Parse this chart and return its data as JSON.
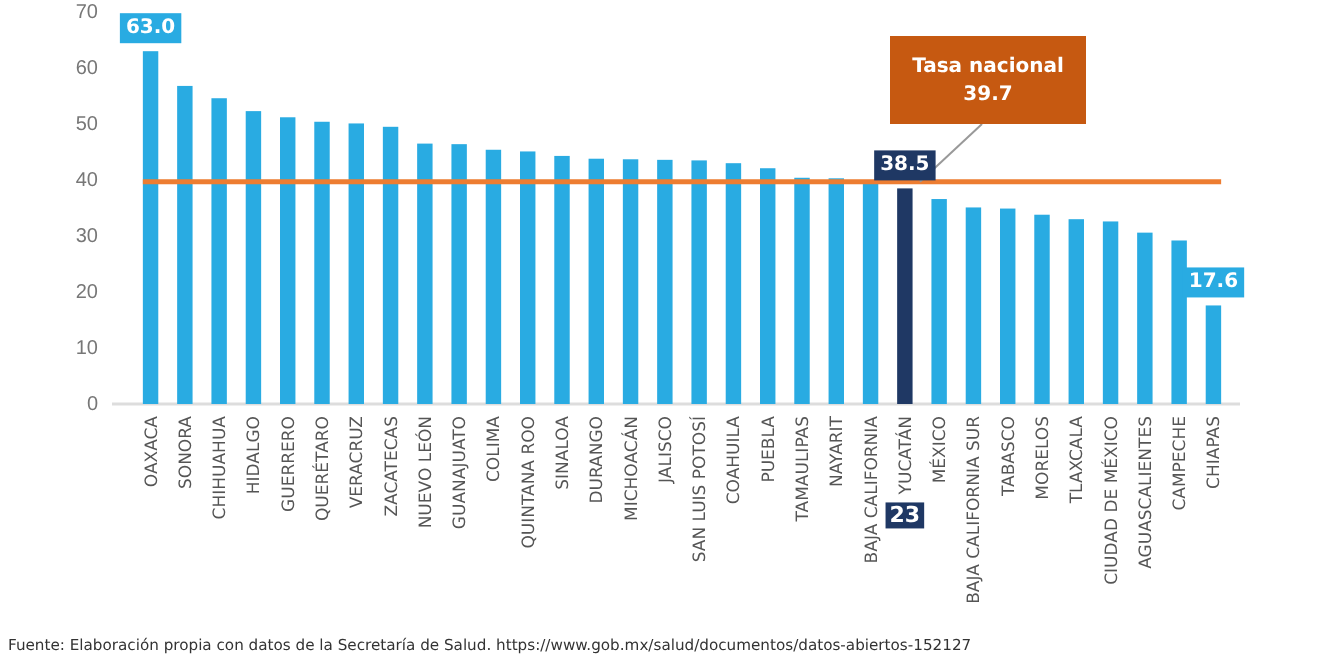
{
  "chart_data": {
    "type": "bar",
    "categories": [
      "OAXACA",
      "SONORA",
      "CHIHUAHUA",
      "HIDALGO",
      "GUERRERO",
      "QUERÉTARO",
      "VERACRUZ",
      "ZACATECAS",
      "NUEVO LEÓN",
      "GUANAJUATO",
      "COLIMA",
      "QUINTANA ROO",
      "SINALOA",
      "DURANGO",
      "MICHOACÁN",
      "JALISCO",
      "SAN LUIS POTOSÍ",
      "COAHUILA",
      "PUEBLA",
      "TAMAULIPAS",
      "NAYARIT",
      "BAJA CALIFORNIA",
      "YUCATÁN",
      "MÉXICO",
      "BAJA CALIFORNIA SUR",
      "TABASCO",
      "MORELOS",
      "TLAXCALA",
      "CIUDAD DE MÉXICO",
      "AGUASCALIENTES",
      "CAMPECHE",
      "CHIAPAS"
    ],
    "values": [
      63.0,
      56.8,
      54.6,
      52.3,
      51.2,
      50.4,
      50.1,
      49.5,
      46.5,
      46.4,
      45.4,
      45.1,
      44.3,
      43.8,
      43.7,
      43.6,
      43.5,
      43.0,
      42.1,
      40.4,
      40.3,
      39.4,
      38.5,
      36.6,
      35.1,
      34.9,
      33.8,
      33.0,
      32.6,
      30.6,
      29.2,
      17.6
    ],
    "colors": [
      "#29abe2",
      "#29abe2",
      "#29abe2",
      "#29abe2",
      "#29abe2",
      "#29abe2",
      "#29abe2",
      "#29abe2",
      "#29abe2",
      "#29abe2",
      "#29abe2",
      "#29abe2",
      "#29abe2",
      "#29abe2",
      "#29abe2",
      "#29abe2",
      "#29abe2",
      "#29abe2",
      "#29abe2",
      "#29abe2",
      "#29abe2",
      "#29abe2",
      "#1f3864",
      "#29abe2",
      "#29abe2",
      "#29abe2",
      "#29abe2",
      "#29abe2",
      "#29abe2",
      "#29abe2",
      "#29abe2",
      "#29abe2"
    ],
    "value_labels": [
      "63.0",
      null,
      null,
      null,
      null,
      null,
      null,
      null,
      null,
      null,
      null,
      null,
      null,
      null,
      null,
      null,
      null,
      null,
      null,
      null,
      null,
      null,
      "38.5",
      null,
      null,
      null,
      null,
      null,
      null,
      null,
      null,
      "17.6"
    ],
    "ylim": [
      0,
      70
    ],
    "yticks": [
      0,
      10,
      20,
      30,
      40,
      50,
      60,
      70
    ],
    "grid": false,
    "ref_lines": [
      {
        "axis": "y",
        "value": 39.7,
        "label": "Tasa nacional\n39.7",
        "color": "#ed7d31"
      }
    ],
    "annotations": [
      "23",
      "Fuente: Elaboración propia con datos de la Secretaría de Salud. https://www.gob.mx/salud/documentos/datos-abiertos-152127"
    ]
  }
}
